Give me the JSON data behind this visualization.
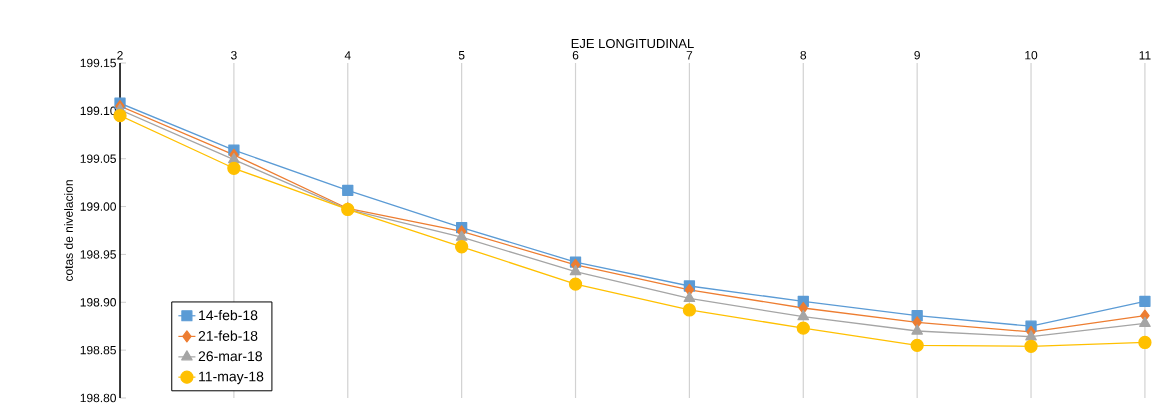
{
  "chart_data": {
    "type": "line",
    "xlabel": "EJE LONGITUDINAL",
    "ylabel": "cotas de nivelacion",
    "x": [
      2,
      3,
      4,
      5,
      6,
      7,
      8,
      9,
      10,
      11
    ],
    "series": [
      {
        "name": "14-feb-18",
        "color": "#5b9bd5",
        "marker": "square",
        "values": [
          199.108,
          199.059,
          199.017,
          198.978,
          198.942,
          198.917,
          198.901,
          198.886,
          198.875,
          198.901
        ]
      },
      {
        "name": "21-feb-18",
        "color": "#ed7d31",
        "marker": "diamond",
        "values": [
          199.105,
          199.054,
          198.998,
          198.974,
          198.939,
          198.913,
          198.894,
          198.879,
          198.869,
          198.886
        ]
      },
      {
        "name": "26-mar-18",
        "color": "#a5a5a5",
        "marker": "triangle",
        "values": [
          199.101,
          199.049,
          198.997,
          198.968,
          198.932,
          198.904,
          198.885,
          198.87,
          198.864,
          198.878
        ]
      },
      {
        "name": "11-may-18",
        "color": "#ffc000",
        "marker": "circle",
        "values": [
          199.095,
          199.04,
          198.997,
          198.958,
          198.919,
          198.892,
          198.873,
          198.855,
          198.854,
          198.858
        ]
      }
    ],
    "xlim": [
      2,
      11
    ],
    "xticks": [
      2,
      3,
      4,
      5,
      6,
      7,
      8,
      9,
      10,
      11
    ],
    "ylim": [
      198.8,
      199.15
    ],
    "yticks": [
      {
        "value": 198.8,
        "label": "198.80"
      },
      {
        "value": 198.85,
        "label": "198.85"
      },
      {
        "value": 198.9,
        "label": "198.90"
      },
      {
        "value": 198.95,
        "label": "198.95"
      },
      {
        "value": 199.0,
        "label": "199.00"
      },
      {
        "value": 199.05,
        "label": "199.05"
      },
      {
        "value": 199.1,
        "label": "199.10"
      },
      {
        "value": 199.15,
        "label": "199.15"
      }
    ],
    "grid": "x",
    "legend": "bottom left",
    "line_style": "solid"
  }
}
